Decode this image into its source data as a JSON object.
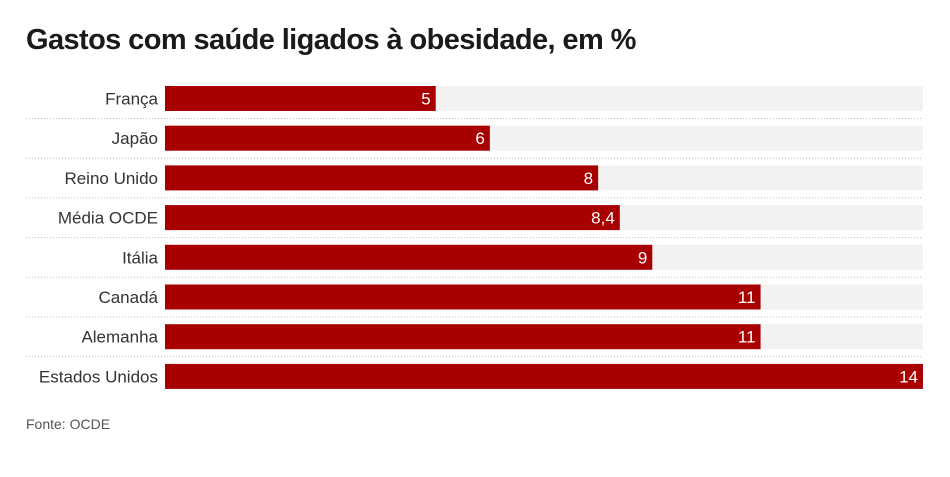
{
  "chart_data": {
    "type": "bar",
    "orientation": "horizontal",
    "title": "Gastos com saúde ligados à obesidade, em %",
    "categories": [
      "França",
      "Japão",
      "Reino Unido",
      "Média OCDE",
      "Itália",
      "Canadá",
      "Alemanha",
      "Estados Unidos"
    ],
    "values": [
      5,
      6,
      8,
      8.4,
      9,
      11,
      11,
      14
    ],
    "value_labels": [
      "5",
      "6",
      "8",
      "8,4",
      "9",
      "11",
      "11",
      "14"
    ],
    "xlim": [
      0,
      14
    ],
    "grid": false,
    "legend": "none",
    "colors": {
      "bar": "#a80000",
      "track": "#f2f2f2",
      "label": "#333333",
      "value_text": "#ffffff",
      "separator": "#bbbbbb"
    }
  },
  "source": "Fonte: OCDE"
}
